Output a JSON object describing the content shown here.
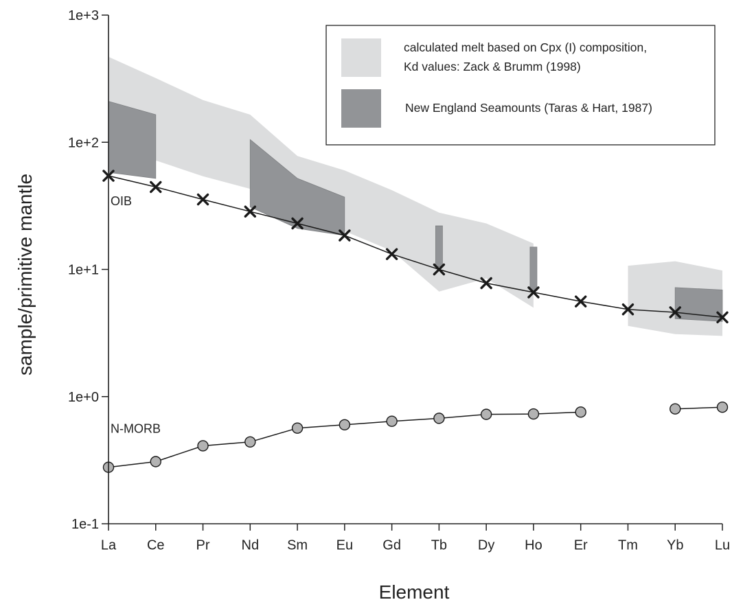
{
  "chart_data": {
    "type": "line",
    "title": "",
    "xlabel": "Element",
    "ylabel": "sample/primitive mantle",
    "y_scale": "log",
    "ylim": [
      0.1,
      1000
    ],
    "y_ticks": [
      {
        "value": 0.1,
        "label": "1e-1"
      },
      {
        "value": 1,
        "label": "1e+0"
      },
      {
        "value": 10,
        "label": "1e+1"
      },
      {
        "value": 100,
        "label": "1e+2"
      },
      {
        "value": 1000,
        "label": "1e+3"
      }
    ],
    "categories": [
      "La",
      "Ce",
      "Pr",
      "Nd",
      "Sm",
      "Eu",
      "Gd",
      "Tb",
      "Dy",
      "Ho",
      "Er",
      "Tm",
      "Yb",
      "Lu"
    ],
    "grid": false,
    "legend_position": "top-right",
    "series": [
      {
        "name": "OIB",
        "marker": "x",
        "values": [
          54.5,
          44.5,
          35.5,
          28.5,
          23,
          18.5,
          13.2,
          10,
          7.8,
          6.6,
          5.6,
          4.85,
          4.6,
          4.2
        ]
      },
      {
        "name": "N-MORB",
        "marker": "circle",
        "color": "#b3b3b3",
        "values": [
          0.278,
          0.308,
          0.41,
          0.44,
          0.565,
          0.6,
          0.64,
          0.675,
          0.725,
          0.73,
          0.755,
          null,
          0.8,
          0.825
        ]
      }
    ],
    "bands": [
      {
        "name": "calculated melt based on Cpx (I) composition, Kd values: Zack & Brumm (1998)",
        "legend_lines": [
          "calculated melt based on Cpx (I) composition,",
          "Kd values: Zack & Brumm (1998)"
        ],
        "color": "#dcddde",
        "segments": [
          {
            "categories": [
              "La",
              "Ce",
              "Pr",
              "Nd",
              "Sm",
              "Eu",
              "Gd",
              "Tb",
              "Dy",
              "Ho"
            ],
            "upper": [
              470,
              320,
              215,
              165,
              78,
              60,
              42,
              28,
              23,
              16
            ],
            "lower": [
              90,
              72,
              54,
              43,
              26,
              20,
              14,
              6.7,
              8.5,
              5
            ]
          },
          {
            "categories": [
              "Tm",
              "Yb",
              "Lu"
            ],
            "upper": [
              10.7,
              11.6,
              9.8
            ],
            "lower": [
              3.6,
              3.1,
              3.0
            ]
          }
        ]
      },
      {
        "name": "New England Seamounts (Taras & Hart, 1987)",
        "legend_lines": [
          "New England Seamounts (Taras & Hart, 1987)"
        ],
        "color": "#929497",
        "segments": [
          {
            "categories": [
              "La",
              "Ce"
            ],
            "upper": [
              210,
              165
            ],
            "lower": [
              58,
              52
            ]
          },
          {
            "categories": [
              "Nd",
              "Sm",
              "Eu"
            ],
            "upper": [
              105,
              52,
              37
            ],
            "lower": [
              31,
              21,
              18.5
            ]
          },
          {
            "categories": [
              "Tb"
            ],
            "upper": [
              22
            ],
            "lower": [
              10.5
            ]
          },
          {
            "categories": [
              "Ho"
            ],
            "upper": [
              15
            ],
            "lower": [
              6.8
            ]
          },
          {
            "categories": [
              "Yb",
              "Lu"
            ],
            "upper": [
              7.2,
              6.9
            ],
            "lower": [
              4.1,
              3.9
            ]
          }
        ]
      }
    ],
    "annotations": [
      {
        "text": "OIB",
        "category": "La",
        "value": 32
      },
      {
        "text": "N-MORB",
        "category": "La",
        "value": 0.52
      }
    ]
  }
}
